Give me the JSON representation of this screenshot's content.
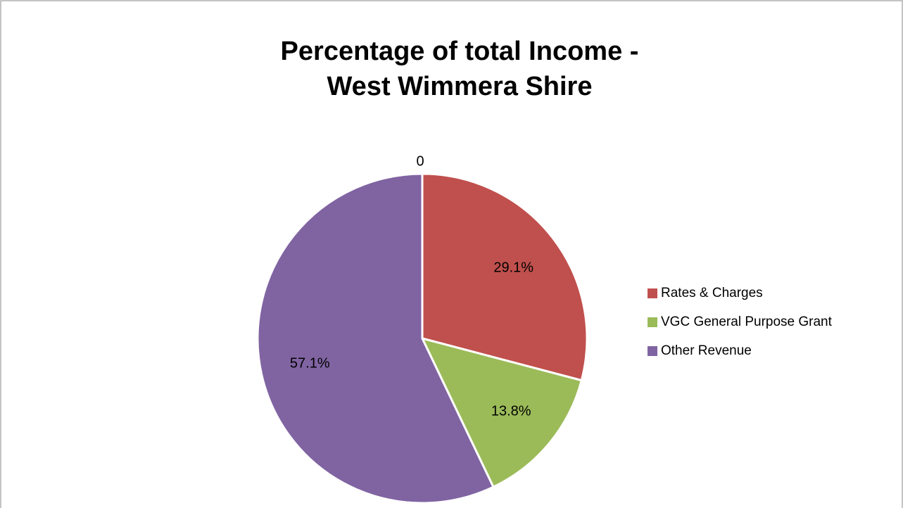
{
  "chart_data": {
    "type": "pie",
    "title": [
      "Percentage of total Income -",
      "West Wimmera Shire"
    ],
    "annotation": "0",
    "categories": [
      "Rates & Charges",
      "VGC General Purpose Grant",
      "Other Revenue"
    ],
    "values": [
      29.1,
      13.8,
      57.1
    ],
    "value_labels": [
      "29.1%",
      "13.8%",
      "57.1%"
    ],
    "colors": [
      "#c0504d",
      "#9bbb59",
      "#8064a2"
    ],
    "legend": "right"
  }
}
